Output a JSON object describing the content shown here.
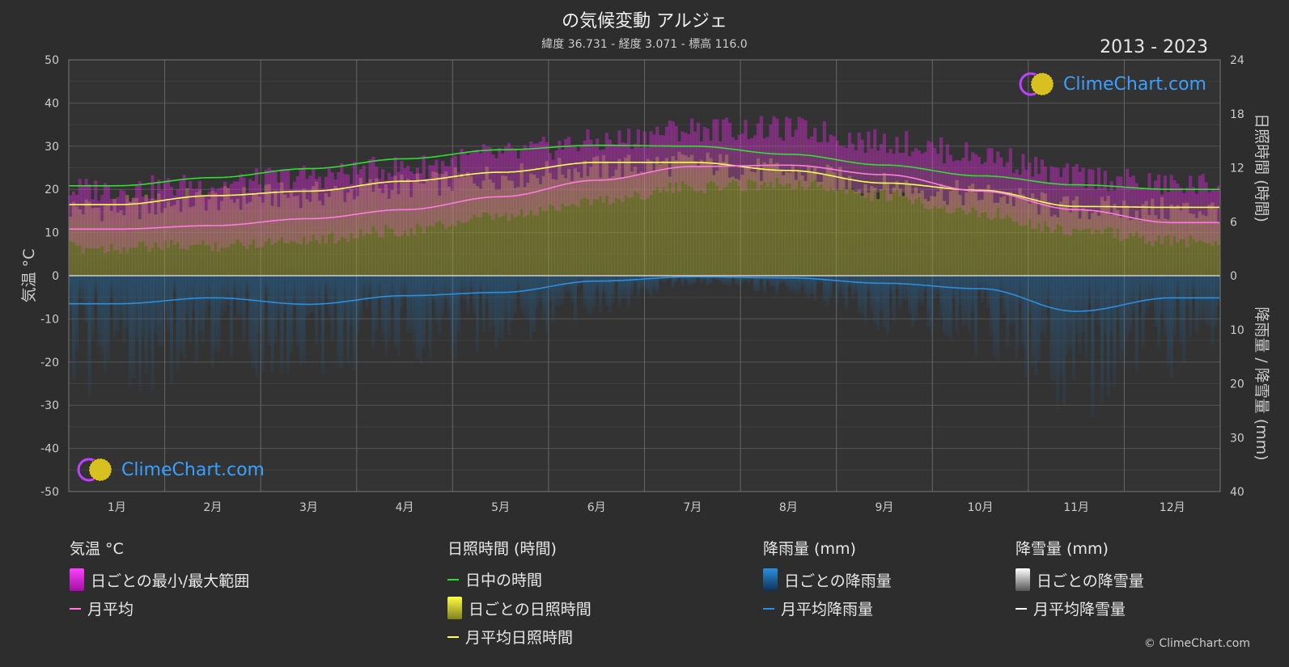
{
  "header": {
    "title": "の気候変動 アルジェ",
    "subtitle": "緯度 36.731 - 経度 3.071 - 標高 116.0",
    "years": "2013 - 2023",
    "logo_text": "ClimeChart.com",
    "copyright": "© ClimeChart.com"
  },
  "colors": {
    "background": "#2d2d2d",
    "temp_range": "#e020e0",
    "temp_avg": "#ff7bdf",
    "daylight": "#33dd33",
    "sunshine_daily": "#bcbc2a",
    "sunshine_avg": "#ffff55",
    "rain_daily": "#1f6fae",
    "rain_avg": "#2b8fe0",
    "snow": "#ffffff"
  },
  "chart_data": {
    "type": "line",
    "categories": [
      "1月",
      "2月",
      "3月",
      "4月",
      "5月",
      "6月",
      "7月",
      "8月",
      "9月",
      "10月",
      "11月",
      "12月"
    ],
    "axes": {
      "left": {
        "label": "気温 °C",
        "ticks": [
          50,
          40,
          30,
          20,
          10,
          0,
          -10,
          -20,
          -30,
          -40,
          -50
        ],
        "range": [
          -50,
          50
        ]
      },
      "right_top": {
        "label": "日照時間 (時間)",
        "ticks": [
          24,
          18,
          12,
          6,
          0
        ],
        "range": [
          0,
          24
        ]
      },
      "right_bottom": {
        "label": "降雨量 / 降雪量 (mm)",
        "ticks": [
          0,
          10,
          20,
          30,
          40
        ],
        "range": [
          0,
          40
        ]
      }
    },
    "series": [
      {
        "name": "月平均",
        "axis": "left",
        "values": [
          10.8,
          11.6,
          13.2,
          15.3,
          18.3,
          22.1,
          25.3,
          25.6,
          23.4,
          19.6,
          15.3,
          12.3
        ]
      },
      {
        "name": "日中の時間",
        "axis": "right_top",
        "values": [
          10.0,
          10.9,
          11.9,
          13.0,
          14.0,
          14.5,
          14.4,
          13.5,
          12.3,
          11.1,
          10.1,
          9.6
        ]
      },
      {
        "name": "月平均日照時間",
        "axis": "right_top",
        "values": [
          7.9,
          8.9,
          9.4,
          10.5,
          11.5,
          12.6,
          12.6,
          11.7,
          10.3,
          9.5,
          7.7,
          7.6
        ]
      },
      {
        "name": "月平均降雨量",
        "axis": "right_bottom",
        "values": [
          5.2,
          4.1,
          5.3,
          3.7,
          3.1,
          1.0,
          0.2,
          0.4,
          1.4,
          2.4,
          6.6,
          4.1
        ]
      },
      {
        "name": "月平均降雪量",
        "axis": "right_bottom",
        "values": [
          0,
          0,
          0,
          0,
          0,
          0,
          0,
          0,
          0,
          0,
          0,
          0
        ]
      }
    ],
    "daily_temp_range": {
      "name": "日ごとの最小/最大範囲",
      "min": [
        8,
        8.5,
        10,
        12,
        15,
        19,
        22,
        23,
        20,
        16,
        12,
        9.5
      ],
      "max": [
        17,
        18,
        20,
        22,
        25,
        28,
        31,
        31,
        28,
        25,
        20,
        18
      ]
    },
    "daily_sunshine": {
      "name": "日ごとの日照時間",
      "values": [
        7.5,
        8.5,
        9,
        10,
        11,
        12,
        12.5,
        11.5,
        10,
        9,
        7.5,
        7.3
      ]
    },
    "daily_rain": {
      "name": "日ごとの降雨量",
      "values": [
        12,
        10,
        11,
        9,
        8,
        4,
        1,
        2,
        6,
        8,
        14,
        11
      ]
    }
  },
  "legend": {
    "groups": [
      {
        "heading": "気温 °C",
        "items": [
          {
            "label": "日ごとの最小/最大範囲",
            "kind": "box",
            "color": "#e020e0"
          },
          {
            "label": "月平均",
            "kind": "line",
            "color": "#ff7bdf"
          }
        ]
      },
      {
        "heading": "日照時間 (時間)",
        "items": [
          {
            "label": "日中の時間",
            "kind": "line",
            "color": "#33dd33"
          },
          {
            "label": "日ごとの日照時間",
            "kind": "box",
            "color": "#cccc30"
          },
          {
            "label": "月平均日照時間",
            "kind": "line",
            "color": "#ffff55"
          }
        ]
      },
      {
        "heading": "降雨量 (mm)",
        "items": [
          {
            "label": "日ごとの降雨量",
            "kind": "box",
            "color": "#2b8fe0"
          },
          {
            "label": "月平均降雨量",
            "kind": "line",
            "color": "#2b8fe0"
          }
        ]
      },
      {
        "heading": "降雪量 (mm)",
        "items": [
          {
            "label": "日ごとの降雪量",
            "kind": "box",
            "color": "#dddddd"
          },
          {
            "label": "月平均降雪量",
            "kind": "line",
            "color": "#ffffff"
          }
        ]
      }
    ]
  }
}
